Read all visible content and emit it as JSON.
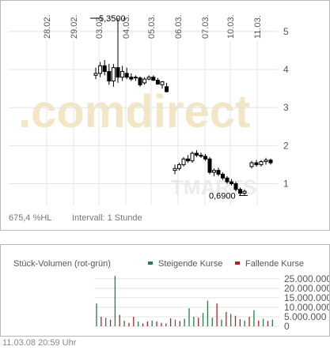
{
  "watermark": ".comdirect",
  "watermark_sub": "TMARTS",
  "price_footer": {
    "change": "675,4 %HL",
    "interval": "Intervall: 1 Stunde"
  },
  "volume": {
    "title": "Stück-Volumen (rot-grün)",
    "legend_rising": "Steigende Kurse",
    "legend_falling": "Fallende Kurse"
  },
  "footer": {
    "timestamp": "11.03.08   20:59 Uhr"
  },
  "colors": {
    "rising": "#2a7a4a",
    "falling": "#b22222",
    "candle": "#000000",
    "grid": "#d9d9d9"
  },
  "chart_data": [
    {
      "type": "candlestick",
      "x_tick_labels": [
        "28.02.",
        "29.02.",
        "03.03.",
        "04.03.",
        "05.03.",
        "06.03.",
        "07.03.",
        "10.03.",
        "11.03."
      ],
      "y_tick_labels": [
        "1",
        "2",
        "3",
        "4",
        "5"
      ],
      "ylim": [
        0.45,
        5.6
      ],
      "annotations": [
        {
          "text": "5,3500",
          "value": 5.35
        },
        {
          "text": "0,6900",
          "value": 0.69
        }
      ],
      "series": [
        {
          "values": [
            [
              3.85,
              4.05,
              3.75,
              3.9
            ],
            [
              3.9,
              4.2,
              3.8,
              4.1
            ],
            [
              4.1,
              4.25,
              3.85,
              3.95
            ],
            [
              3.95,
              4.15,
              3.6,
              3.7
            ],
            [
              3.7,
              4.15,
              3.55,
              4.05
            ],
            [
              4.05,
              5.35,
              3.65,
              3.8
            ],
            [
              3.8,
              4.1,
              3.7,
              3.95
            ],
            [
              3.9,
              4.05,
              3.75,
              3.8
            ],
            [
              3.8,
              3.9,
              3.7,
              3.75
            ],
            [
              3.8,
              3.85,
              3.7,
              3.78
            ],
            [
              3.78,
              3.82,
              3.55,
              3.6
            ],
            [
              3.65,
              3.8,
              3.6,
              3.75
            ],
            [
              3.75,
              3.85,
              3.72,
              3.8
            ],
            [
              3.8,
              3.85,
              3.7,
              3.72
            ],
            [
              3.72,
              3.78,
              3.6,
              3.62
            ],
            [
              3.6,
              3.7,
              3.5,
              3.68
            ],
            [
              3.55,
              3.65,
              3.4,
              3.42
            ],
            [
              1.35,
              1.5,
              1.25,
              1.4
            ],
            [
              1.4,
              1.55,
              1.35,
              1.5
            ],
            [
              1.5,
              1.7,
              1.45,
              1.65
            ],
            [
              1.65,
              1.75,
              1.55,
              1.6
            ],
            [
              1.6,
              1.85,
              1.55,
              1.8
            ],
            [
              1.8,
              1.88,
              1.7,
              1.75
            ],
            [
              1.75,
              1.82,
              1.68,
              1.72
            ],
            [
              1.72,
              1.78,
              1.6,
              1.65
            ],
            [
              1.65,
              1.7,
              1.25,
              1.3
            ],
            [
              1.3,
              1.4,
              1.2,
              1.35
            ],
            [
              1.35,
              1.42,
              1.2,
              1.25
            ],
            [
              1.25,
              1.3,
              1.1,
              1.15
            ],
            [
              1.15,
              1.2,
              1.0,
              1.05
            ],
            [
              1.05,
              1.12,
              0.95,
              1.0
            ],
            [
              1.0,
              1.05,
              0.8,
              0.85
            ],
            [
              0.85,
              0.9,
              0.69,
              0.75
            ],
            [
              0.75,
              0.85,
              0.7,
              0.8
            ],
            [
              1.45,
              1.6,
              1.4,
              1.55
            ],
            [
              1.55,
              1.62,
              1.45,
              1.5
            ],
            [
              1.5,
              1.62,
              1.45,
              1.58
            ],
            [
              1.58,
              1.68,
              1.5,
              1.62
            ],
            [
              1.62,
              1.66,
              1.5,
              1.55
            ]
          ]
        }
      ]
    },
    {
      "type": "bar",
      "title": "Stück-Volumen (rot-grün)",
      "y_tick_labels": [
        "0",
        "5.000.000",
        "10.000.000",
        "15.000.000",
        "20.000.000",
        "25.000.000"
      ],
      "ylim": [
        0,
        27000000
      ],
      "series": [
        {
          "name": "Steigende Kurse",
          "values": [
            [
              0,
              12000000
            ],
            [
              2,
              4500000
            ],
            [
              4,
              26500000
            ],
            [
              6,
              3000000
            ],
            [
              9,
              2500000
            ],
            [
              12,
              3000000
            ],
            [
              17,
              3500000
            ],
            [
              19,
              4000000
            ],
            [
              20,
              9500000
            ],
            [
              21,
              5000000
            ],
            [
              23,
              7000000
            ],
            [
              24,
              13500000
            ],
            [
              25,
              4500000
            ],
            [
              27,
              3500000
            ],
            [
              29,
              6500000
            ],
            [
              32,
              3000000
            ],
            [
              34,
              8500000
            ],
            [
              36,
              4000000
            ],
            [
              38,
              3500000
            ]
          ]
        },
        {
          "name": "Fallende Kurse",
          "values": [
            [
              1,
              5000000
            ],
            [
              3,
              3500000
            ],
            [
              5,
              6000000
            ],
            [
              7,
              1800000
            ],
            [
              8,
              5000000
            ],
            [
              10,
              1500000
            ],
            [
              11,
              2500000
            ],
            [
              13,
              2500000
            ],
            [
              14,
              1800000
            ],
            [
              15,
              1500000
            ],
            [
              16,
              4200000
            ],
            [
              18,
              2800000
            ],
            [
              22,
              4500000
            ],
            [
              26,
              12000000
            ],
            [
              28,
              7500000
            ],
            [
              30,
              5500000
            ],
            [
              31,
              3800000
            ],
            [
              33,
              5000000
            ],
            [
              35,
              3000000
            ],
            [
              37,
              2800000
            ]
          ]
        }
      ]
    }
  ]
}
